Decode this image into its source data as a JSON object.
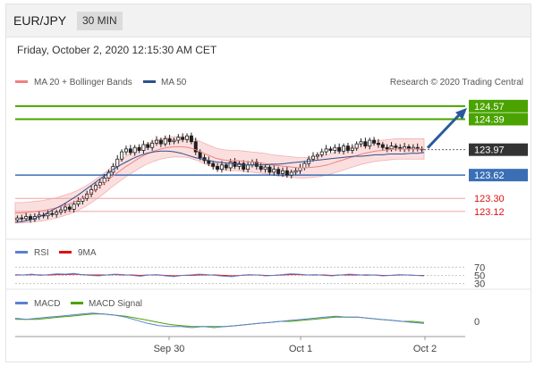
{
  "header": {
    "pair": "EUR/JPY",
    "timeframe": "30 MIN"
  },
  "date_text": "Friday, October 2, 2020 12:15:30 AM CET",
  "legend": {
    "ma20": "MA 20 + Bollinger Bands",
    "ma50": "MA 50",
    "credit": "Research © 2020 Trading Central"
  },
  "rsi_legend": {
    "rsi": "RSI",
    "ma9": "9MA"
  },
  "macd_legend": {
    "macd": "MACD",
    "signal": "MACD Signal"
  },
  "colors": {
    "resistance": "#4aa300",
    "support": "#3a6fb6",
    "red_level": "#e06060",
    "current": "#333333",
    "arrow": "#2a5a9c",
    "candle": "#1f1f1f",
    "band": "#f7c4c4"
  },
  "chart_data": {
    "type": "candlestick",
    "x_ticks": [
      "Sep 30",
      "Oct 1",
      "Oct 2"
    ],
    "ylim": [
      122.86,
      124.74
    ],
    "levels": [
      {
        "value": 124.57,
        "label": "124.57",
        "kind": "resistance"
      },
      {
        "value": 124.39,
        "label": "124.39",
        "kind": "resistance"
      },
      {
        "value": 123.97,
        "label": "123.97",
        "kind": "current"
      },
      {
        "value": 123.62,
        "label": "123.62",
        "kind": "support"
      },
      {
        "value": 123.3,
        "label": "123.30",
        "kind": "minor"
      },
      {
        "value": 123.12,
        "label": "123.12",
        "kind": "minor"
      }
    ],
    "close": [
      123.03,
      123.02,
      123.05,
      123.01,
      123.05,
      123.07,
      123.06,
      123.09,
      123.08,
      123.11,
      123.14,
      123.18,
      123.15,
      123.22,
      123.26,
      123.3,
      123.36,
      123.42,
      123.48,
      123.52,
      123.58,
      123.66,
      123.74,
      123.84,
      123.94,
      123.98,
      123.93,
      124.0,
      123.96,
      124.04,
      124.0,
      124.06,
      124.1,
      124.05,
      124.12,
      124.08,
      124.1,
      124.14,
      124.11,
      124.16,
      124.08,
      123.94,
      123.86,
      123.82,
      123.78,
      123.74,
      123.7,
      123.76,
      123.72,
      123.8,
      123.74,
      123.78,
      123.7,
      123.76,
      123.8,
      123.74,
      123.7,
      123.73,
      123.66,
      123.7,
      123.64,
      123.68,
      123.62,
      123.66,
      123.68,
      123.72,
      123.78,
      123.84,
      123.88,
      123.9,
      123.94,
      123.98,
      123.96,
      124.0,
      123.95,
      124.02,
      123.96,
      123.99,
      124.05,
      124.08,
      124.02,
      124.1,
      124.06,
      124.04,
      124.0,
      123.98,
      124.02,
      124.0,
      123.98,
      124.01,
      123.98,
      124.0,
      123.98,
      123.98
    ],
    "ma20": [
      123.1,
      123.1,
      123.11,
      123.12,
      123.13,
      123.15,
      123.17,
      123.2,
      123.23,
      123.27,
      123.32,
      123.38,
      123.45,
      123.52,
      123.6,
      123.67,
      123.74,
      123.8,
      123.86,
      123.91,
      123.95,
      123.98,
      124.0,
      124.01,
      124.01,
      124.0,
      123.97,
      123.93,
      123.89,
      123.85,
      123.83,
      123.82,
      123.82,
      123.81,
      123.8,
      123.79,
      123.78,
      123.76,
      123.75,
      123.74,
      123.73,
      123.72,
      123.72,
      123.73,
      123.74,
      123.76,
      123.79,
      123.82,
      123.85,
      123.88,
      123.91,
      123.93,
      123.95,
      123.96,
      123.97,
      123.98,
      123.98,
      123.98,
      123.98,
      123.98
    ],
    "ma50": [
      122.97,
      122.98,
      123.0,
      123.03,
      123.07,
      123.12,
      123.17,
      123.22,
      123.28,
      123.34,
      123.41,
      123.48,
      123.55,
      123.62,
      123.69,
      123.75,
      123.8,
      123.85,
      123.89,
      123.92,
      123.94,
      123.95,
      123.95,
      123.94,
      123.92,
      123.89,
      123.86,
      123.84,
      123.82,
      123.8,
      123.79,
      123.78,
      123.77,
      123.76,
      123.76,
      123.76,
      123.76,
      123.77,
      123.77,
      123.78,
      123.79,
      123.8,
      123.81,
      123.82,
      123.83,
      123.84,
      123.85,
      123.86,
      123.87,
      123.88,
      123.88,
      123.89,
      123.9,
      123.9,
      123.91,
      123.91,
      123.91,
      123.92,
      123.92,
      123.93
    ],
    "bb_width": 0.14,
    "rsi": {
      "ticks": [
        "70",
        "50",
        "30"
      ],
      "ylim": [
        25,
        75
      ],
      "rsi": [
        52,
        51,
        53,
        50,
        52,
        54,
        53,
        55,
        52,
        50,
        49,
        51,
        53,
        52,
        50,
        48,
        51,
        52,
        49,
        47,
        50,
        51,
        53,
        52,
        50,
        48,
        47,
        50,
        52,
        51,
        49,
        50,
        52,
        54,
        53,
        51,
        52,
        50,
        49,
        51,
        53,
        52,
        50,
        51,
        49,
        50,
        52,
        51,
        50,
        49
      ],
      "ma9": [
        51,
        51,
        52,
        51,
        51,
        52,
        52,
        53,
        52,
        51,
        51,
        51,
        52,
        51,
        51,
        50,
        51,
        51,
        50,
        49,
        50,
        50,
        51,
        51,
        51,
        50,
        49,
        50,
        51,
        51,
        50,
        50,
        51,
        52,
        52,
        51,
        51,
        51,
        50,
        51,
        51,
        51,
        51,
        51,
        50,
        50,
        51,
        51,
        50,
        50
      ]
    },
    "macd": {
      "ticks": [
        "0"
      ],
      "ylim": [
        -0.12,
        0.12
      ],
      "macd": [
        0.03,
        0.02,
        0.03,
        0.04,
        0.05,
        0.06,
        0.07,
        0.08,
        0.07,
        0.06,
        0.04,
        0.01,
        -0.02,
        -0.04,
        -0.05,
        -0.05,
        -0.06,
        -0.05,
        -0.06,
        -0.05,
        -0.04,
        -0.03,
        -0.02,
        -0.01,
        0.0,
        0.01,
        0.02,
        0.03,
        0.04,
        0.05,
        0.04,
        0.04,
        0.03,
        0.02,
        0.01,
        0.0,
        -0.01,
        -0.02
      ],
      "signal": [
        0.02,
        0.02,
        0.02,
        0.03,
        0.04,
        0.05,
        0.06,
        0.07,
        0.07,
        0.06,
        0.05,
        0.03,
        0.01,
        -0.01,
        -0.03,
        -0.04,
        -0.05,
        -0.05,
        -0.05,
        -0.05,
        -0.04,
        -0.03,
        -0.02,
        -0.01,
        0.0,
        0.0,
        0.01,
        0.02,
        0.03,
        0.04,
        0.04,
        0.04,
        0.03,
        0.02,
        0.01,
        0.0,
        0.0,
        -0.01
      ]
    }
  }
}
